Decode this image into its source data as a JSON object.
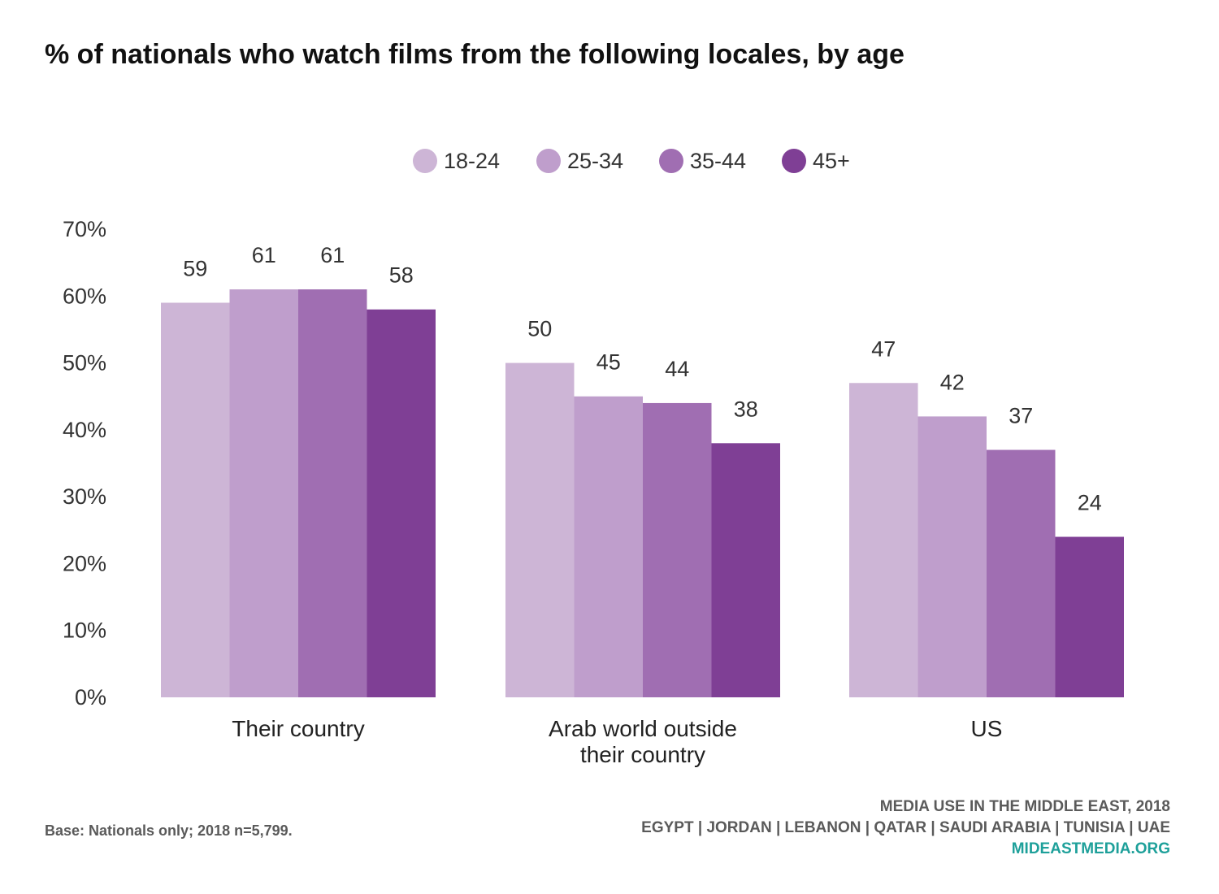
{
  "chart_data": {
    "type": "bar",
    "title": "% of nationals who watch films from the following locales, by age",
    "categories": [
      "Their country",
      "Arab world outside their country",
      "US"
    ],
    "category_lines": [
      [
        "Their country"
      ],
      [
        "Arab world outside",
        "their country"
      ],
      [
        "US"
      ]
    ],
    "series": [
      {
        "name": "18-24",
        "color": "#cdb5d6",
        "values": [
          59,
          50,
          47
        ]
      },
      {
        "name": "25-34",
        "color": "#bf9ecc",
        "values": [
          61,
          45,
          42
        ]
      },
      {
        "name": "35-44",
        "color": "#a06eb2",
        "values": [
          61,
          44,
          37
        ]
      },
      {
        "name": "45+",
        "color": "#7f3f95",
        "values": [
          58,
          38,
          24
        ]
      }
    ],
    "yticks": [
      "0%",
      "10%",
      "20%",
      "30%",
      "40%",
      "50%",
      "60%",
      "70%"
    ],
    "ylim": [
      0,
      70
    ],
    "grid": false,
    "legend_position": "top-center"
  },
  "footer": {
    "base_note": "Base: Nationals only; 2018 n=5,799.",
    "source_line1": "MEDIA USE IN THE MIDDLE EAST, 2018",
    "source_line2": "EGYPT | JORDAN | LEBANON | QATAR | SAUDI ARABIA | TUNISIA | UAE",
    "website": "MIDEASTMEDIA.ORG"
  }
}
